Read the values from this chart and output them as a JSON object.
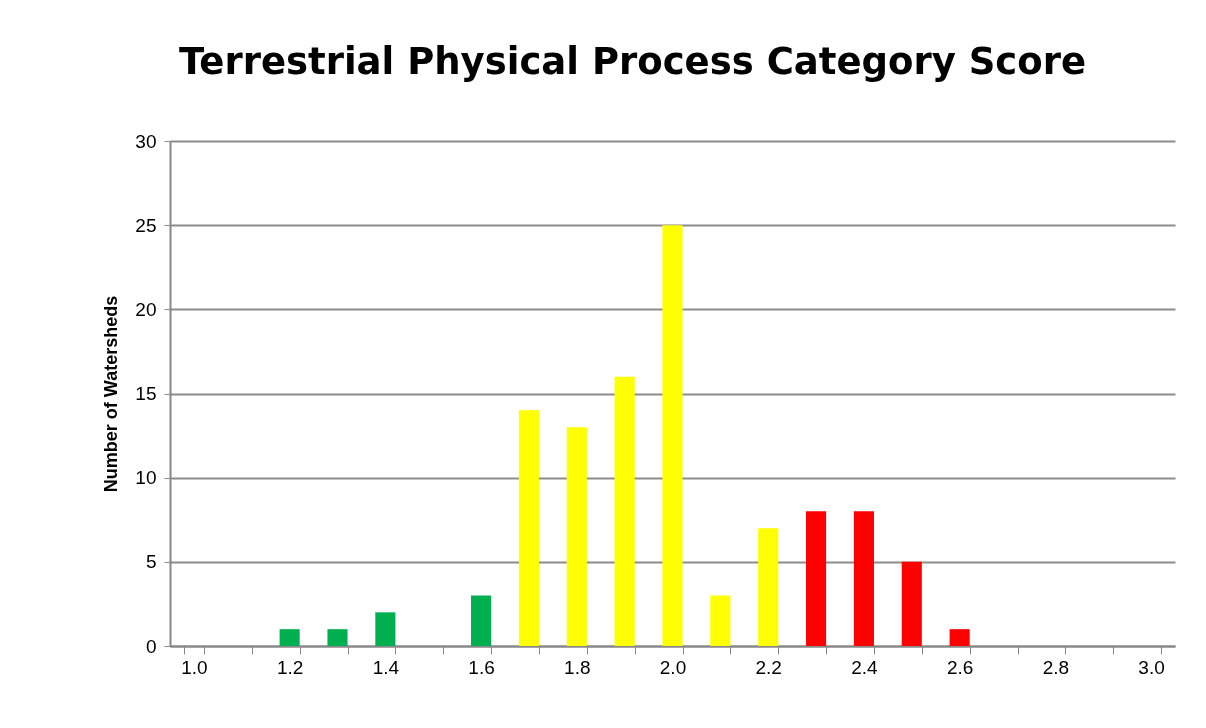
{
  "chart_data": {
    "type": "bar",
    "title": "Terrestrial Physical Process Category Score",
    "ylabel": "Number of Watersheds",
    "categories": [
      "1.0",
      null,
      "1.2",
      null,
      "1.4",
      null,
      "1.6",
      null,
      "1.8",
      null,
      "2.0",
      null,
      "2.2",
      null,
      "2.4",
      null,
      "2.6",
      null,
      "2.8",
      null,
      "3.0"
    ],
    "values": [
      0,
      0,
      1,
      1,
      2,
      0,
      3,
      14,
      13,
      16,
      25,
      3,
      7,
      8,
      8,
      5,
      1,
      0,
      0,
      0,
      0
    ],
    "colors": [
      "#00b050",
      "#00b050",
      "#00b050",
      "#00b050",
      "#00b050",
      "#00b050",
      "#00b050",
      "#ffff00",
      "#ffff00",
      "#ffff00",
      "#ffff00",
      "#ffff00",
      "#ffff00",
      "#ff0000",
      "#ff0000",
      "#ff0000",
      "#ff0000",
      "#ff0000",
      "#ff0000",
      "#ff0000",
      "#ff0000"
    ],
    "ylim": [
      0,
      30
    ],
    "yticks": [
      0,
      5,
      10,
      15,
      20,
      25,
      30
    ],
    "grid": "y"
  }
}
